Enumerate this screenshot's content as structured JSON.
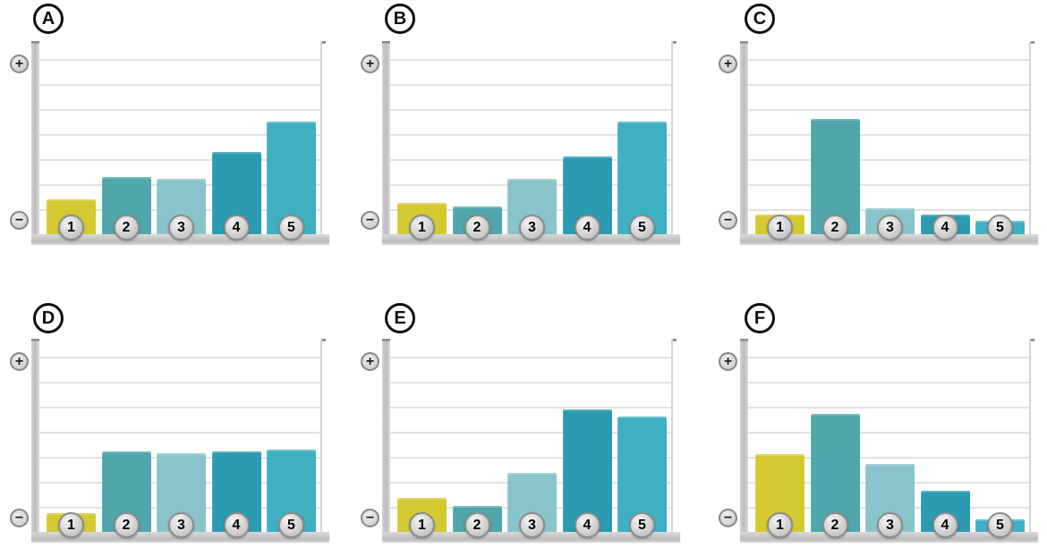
{
  "figure": {
    "bar_colors": [
      "#d4c930",
      "#4fa6ab",
      "#8ac4cb",
      "#2a9bb0",
      "#3eb0c2"
    ],
    "axis": {
      "plus_label": "+",
      "minus_label": "−"
    },
    "panel_labels": [
      "A",
      "B",
      "C",
      "D",
      "E",
      "F"
    ]
  },
  "chart_data": [
    {
      "id": "A",
      "type": "bar",
      "title": "A",
      "categories": [
        "1",
        "2",
        "3",
        "4",
        "5"
      ],
      "values": [
        1.4,
        2.3,
        2.2,
        3.3,
        4.5
      ],
      "xlabel": "",
      "ylabel": "",
      "ylim": [
        0,
        7.7
      ],
      "yaxis": {
        "top": "+",
        "bottom": "−"
      },
      "grid": true,
      "legend": "none"
    },
    {
      "id": "B",
      "type": "bar",
      "title": "B",
      "categories": [
        "1",
        "2",
        "3",
        "4",
        "5"
      ],
      "values": [
        1.25,
        1.1,
        2.2,
        3.1,
        4.5
      ],
      "xlabel": "",
      "ylabel": "",
      "ylim": [
        0,
        7.7
      ],
      "yaxis": {
        "top": "+",
        "bottom": "−"
      },
      "grid": true,
      "legend": "none"
    },
    {
      "id": "C",
      "type": "bar",
      "title": "C",
      "categories": [
        "1",
        "2",
        "3",
        "4",
        "5"
      ],
      "values": [
        0.8,
        4.6,
        1.05,
        0.8,
        0.55
      ],
      "xlabel": "",
      "ylabel": "",
      "ylim": [
        0,
        7.7
      ],
      "yaxis": {
        "top": "+",
        "bottom": "−"
      },
      "grid": true,
      "legend": "none"
    },
    {
      "id": "D",
      "type": "bar",
      "title": "D",
      "categories": [
        "1",
        "2",
        "3",
        "4",
        "5"
      ],
      "values": [
        0.75,
        3.2,
        3.15,
        3.2,
        3.3
      ],
      "xlabel": "",
      "ylabel": "",
      "ylim": [
        0,
        7.7
      ],
      "yaxis": {
        "top": "+",
        "bottom": "−"
      },
      "grid": true,
      "legend": "none"
    },
    {
      "id": "E",
      "type": "bar",
      "title": "E",
      "categories": [
        "1",
        "2",
        "3",
        "4",
        "5"
      ],
      "values": [
        1.35,
        1.05,
        2.35,
        4.9,
        4.6
      ],
      "xlabel": "",
      "ylabel": "",
      "ylim": [
        0,
        7.7
      ],
      "yaxis": {
        "top": "+",
        "bottom": "−"
      },
      "grid": true,
      "legend": "none"
    },
    {
      "id": "F",
      "type": "bar",
      "title": "F",
      "categories": [
        "1",
        "2",
        "3",
        "4",
        "5"
      ],
      "values": [
        3.1,
        4.7,
        2.7,
        1.65,
        0.5
      ],
      "xlabel": "",
      "ylabel": "",
      "ylim": [
        0,
        7.7
      ],
      "yaxis": {
        "top": "+",
        "bottom": "−"
      },
      "grid": true,
      "legend": "none"
    }
  ]
}
